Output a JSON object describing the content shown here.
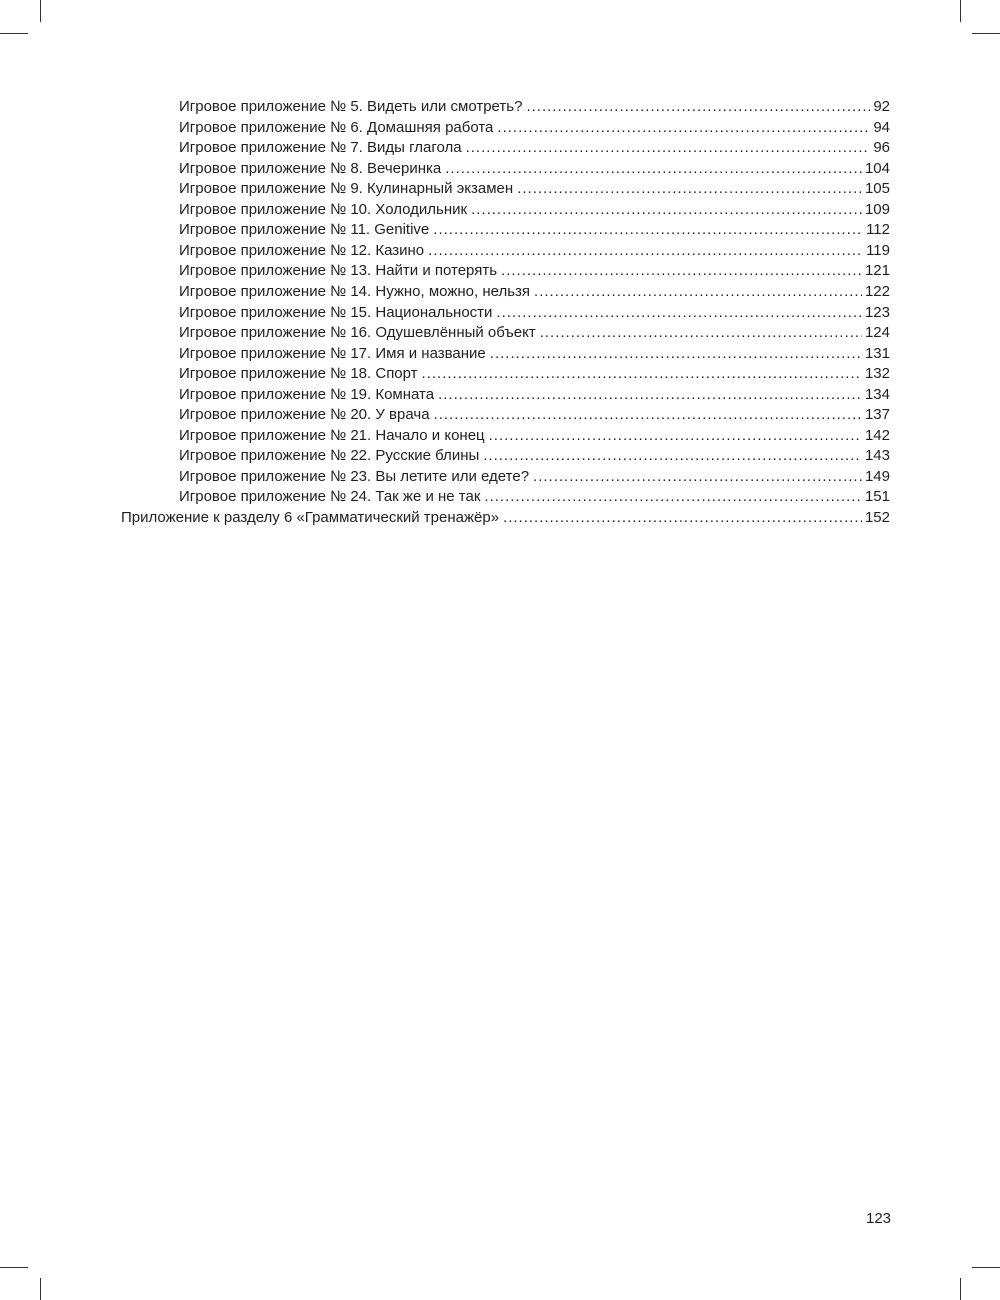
{
  "toc": [
    {
      "title": "Игровое приложение № 5. Видеть или смотреть?",
      "page": "92",
      "level": 2
    },
    {
      "title": "Игровое приложение № 6. Домашняя работа",
      "page": "94",
      "level": 2
    },
    {
      "title": "Игровое приложение № 7. Виды глагола",
      "page": "96",
      "level": 2
    },
    {
      "title": "Игровое приложение № 8. Вечеринка",
      "page": "104",
      "level": 2
    },
    {
      "title": "Игровое приложение № 9. Кулинарный экзамен",
      "page": "105",
      "level": 2
    },
    {
      "title": "Игровое приложение № 10. Холодильник",
      "page": "109",
      "level": 2
    },
    {
      "title": "Игровое приложение № 11. Genitive",
      "page": "112",
      "level": 2
    },
    {
      "title": "Игровое приложение № 12. Казино",
      "page": "119",
      "level": 2
    },
    {
      "title": "Игровое приложение № 13. Найти и потерять",
      "page": "121",
      "level": 2
    },
    {
      "title": "Игровое приложение № 14. Нужно, можно, нельзя",
      "page": "122",
      "level": 2
    },
    {
      "title": "Игровое приложение № 15. Национальности",
      "page": "123",
      "level": 2
    },
    {
      "title": "Игровое приложение № 16. Одушевлённый объект",
      "page": "124",
      "level": 2
    },
    {
      "title": "Игровое приложение № 17. Имя и название",
      "page": "131",
      "level": 2
    },
    {
      "title": "Игровое приложение № 18. Спорт",
      "page": "132",
      "level": 2
    },
    {
      "title": "Игровое приложение № 19. Комната",
      "page": "134",
      "level": 2
    },
    {
      "title": "Игровое приложение № 20. У врача",
      "page": "137",
      "level": 2
    },
    {
      "title": "Игровое приложение № 21. Начало и конец",
      "page": "142",
      "level": 2
    },
    {
      "title": "Игровое приложение № 22. Русские блины",
      "page": "143",
      "level": 2
    },
    {
      "title": "Игровое приложение № 23. Вы летите или едете?",
      "page": "149",
      "level": 2
    },
    {
      "title": "Игровое приложение № 24. Так же и не так",
      "page": "151",
      "level": 2
    },
    {
      "title": "Приложение к разделу 6 «Грамматический тренажёр»",
      "page": "152",
      "level": 1
    }
  ],
  "folio": "123"
}
